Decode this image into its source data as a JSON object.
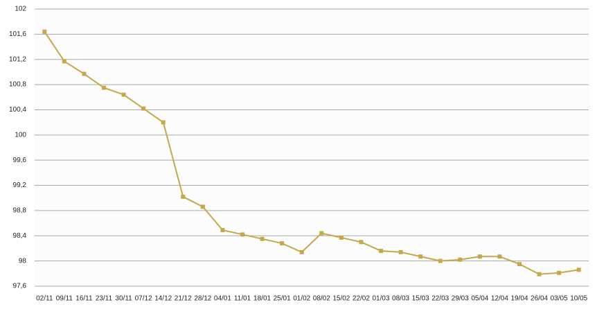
{
  "chart_data": {
    "type": "line",
    "categories": [
      "02/11",
      "09/11",
      "16/11",
      "23/11",
      "30/11",
      "07/12",
      "14/12",
      "21/12",
      "28/12",
      "04/01",
      "11/01",
      "18/01",
      "25/01",
      "01/02",
      "08/02",
      "15/02",
      "22/02",
      "01/03",
      "08/03",
      "15/03",
      "22/03",
      "29/03",
      "05/04",
      "12/04",
      "19/04",
      "26/04",
      "03/05",
      "10/05"
    ],
    "values": [
      101.64,
      101.17,
      100.97,
      100.75,
      100.64,
      100.42,
      100.2,
      99.02,
      98.86,
      98.49,
      98.42,
      98.35,
      98.28,
      98.14,
      98.44,
      98.37,
      98.3,
      98.16,
      98.14,
      98.07,
      98.0,
      98.02,
      98.07,
      98.07,
      97.95,
      97.79,
      97.81,
      97.86
    ],
    "color": "#c4a84a",
    "ylim": [
      97.6,
      102
    ],
    "yticks": [
      {
        "value": 97.6,
        "label": "97,6"
      },
      98,
      {
        "value": 98.4,
        "label": "98,4"
      },
      {
        "value": 98.8,
        "label": "98,8"
      },
      {
        "value": 99.2,
        "label": "99,2"
      },
      {
        "value": 99.6,
        "label": "99,6"
      },
      100,
      {
        "value": 100.4,
        "label": "100,4"
      },
      {
        "value": 100.8,
        "label": "100,8"
      },
      {
        "value": 101.2,
        "label": "101,2"
      },
      {
        "value": 101.6,
        "label": "101,6"
      },
      102
    ],
    "grid": true
  }
}
